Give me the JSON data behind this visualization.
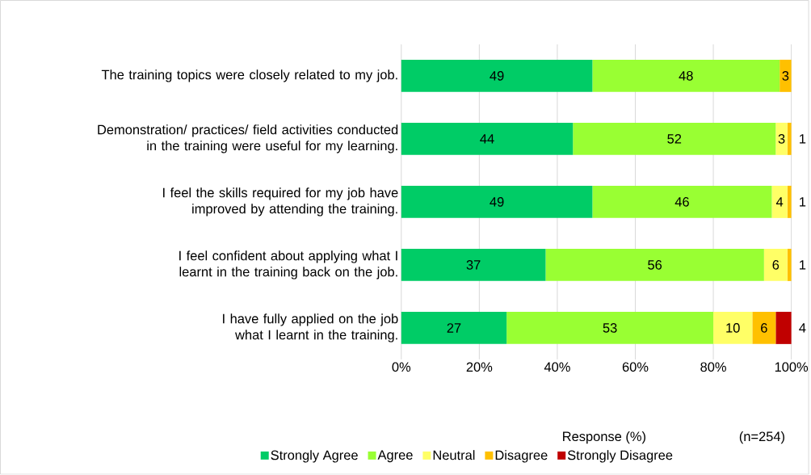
{
  "chart_data": {
    "type": "bar",
    "orientation": "horizontal",
    "stacked": true,
    "categories": [
      "The training topics were closely related to my job.",
      "Demonstration/ practices/ field activities conducted in the training were useful for my learning.",
      "I feel the skills required for my job have improved by attending the training.",
      "I feel confident about applying what I learnt in the training back on the job.",
      "I have fully applied on the job what I learnt in the training."
    ],
    "series": [
      {
        "name": "Strongly Agree",
        "color": "#00cc66",
        "values": [
          49,
          44,
          49,
          37,
          27
        ],
        "value_labels": [
          "49",
          "44",
          "49",
          "37",
          "27"
        ]
      },
      {
        "name": "Agree",
        "color": "#99ff33",
        "values": [
          48,
          52,
          46,
          56,
          53
        ],
        "value_labels": [
          "48",
          "52",
          "46",
          "56",
          "53"
        ]
      },
      {
        "name": "Neutral",
        "color": "#ffff66",
        "values": [
          0,
          3,
          4,
          6,
          10
        ],
        "value_labels": [
          null,
          "3",
          "4",
          "6",
          "10"
        ]
      },
      {
        "name": "Disagree",
        "color": "#ffc000",
        "values": [
          3,
          1,
          1,
          1,
          6
        ],
        "value_labels": [
          "3",
          "1",
          "1",
          "1",
          "6"
        ]
      },
      {
        "name": "Strongly Disagree",
        "color": "#c00000",
        "values": [
          0,
          0,
          0,
          0,
          4
        ],
        "value_labels": [
          null,
          null,
          null,
          null,
          "4"
        ]
      }
    ],
    "xlim": [
      0,
      100
    ],
    "xticks": [
      {
        "value": 0,
        "label": "0%"
      },
      {
        "value": 20,
        "label": "20%"
      },
      {
        "value": 40,
        "label": "40%"
      },
      {
        "value": 60,
        "label": "60%"
      },
      {
        "value": 80,
        "label": "80%"
      },
      {
        "value": 100,
        "label": "100%"
      }
    ],
    "xlabel": "Response (%)",
    "annotations": [
      "(n=254)"
    ],
    "grid": "x",
    "legend": "bottom"
  }
}
